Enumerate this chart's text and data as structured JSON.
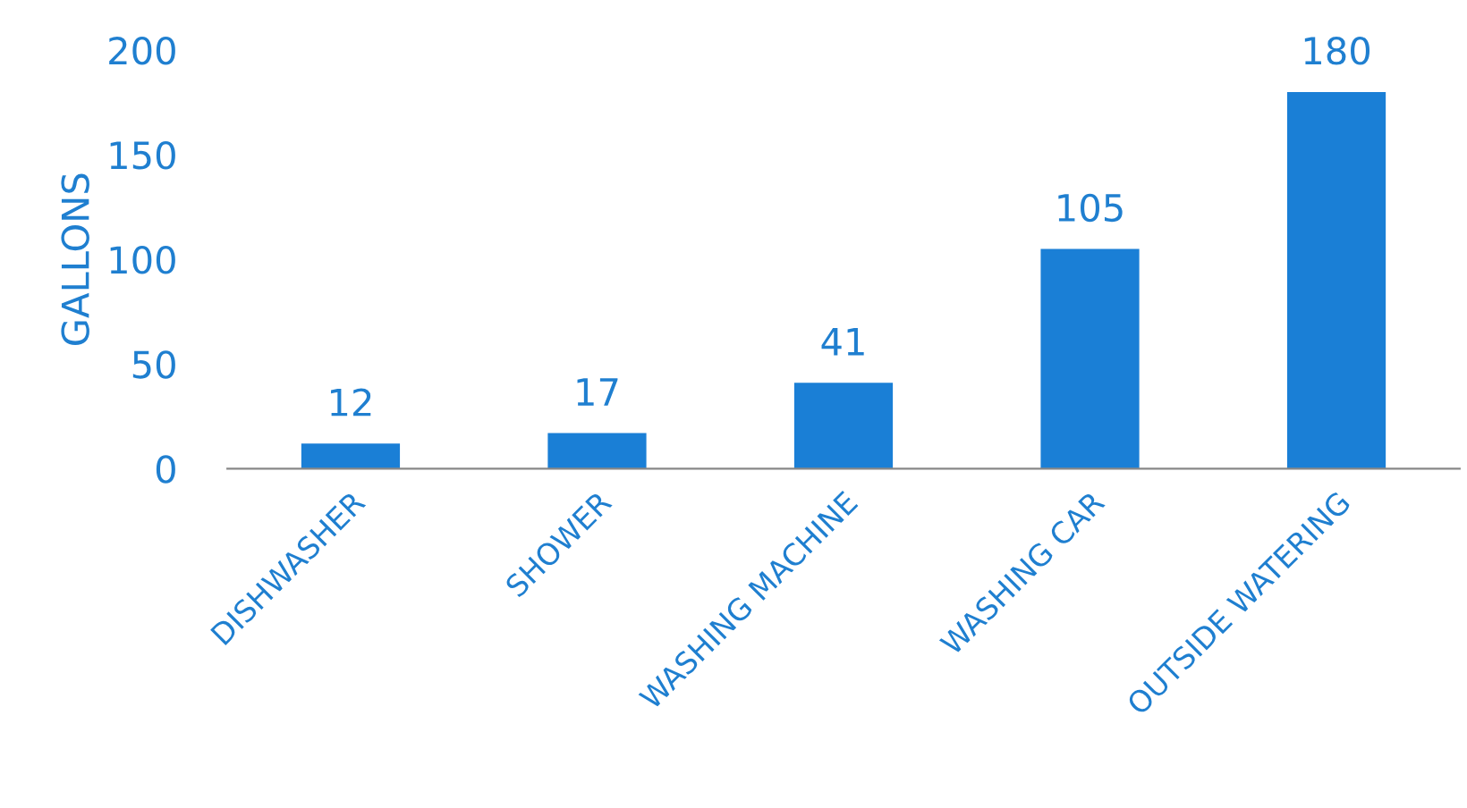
{
  "chart_data": {
    "type": "bar",
    "ylabel": "GALLONS",
    "categories": [
      "DISHWASHER",
      "SHOWER",
      "WASHING MACHINE",
      "WASHING CAR",
      "OUTSIDE WATERING"
    ],
    "values": [
      12,
      17,
      41,
      105,
      180
    ],
    "color": "#1a7fd6",
    "ylim": [
      0,
      200
    ],
    "yticks": [
      0,
      50,
      100,
      150,
      200
    ],
    "data_labels": true,
    "grid": false,
    "legend": false
  }
}
